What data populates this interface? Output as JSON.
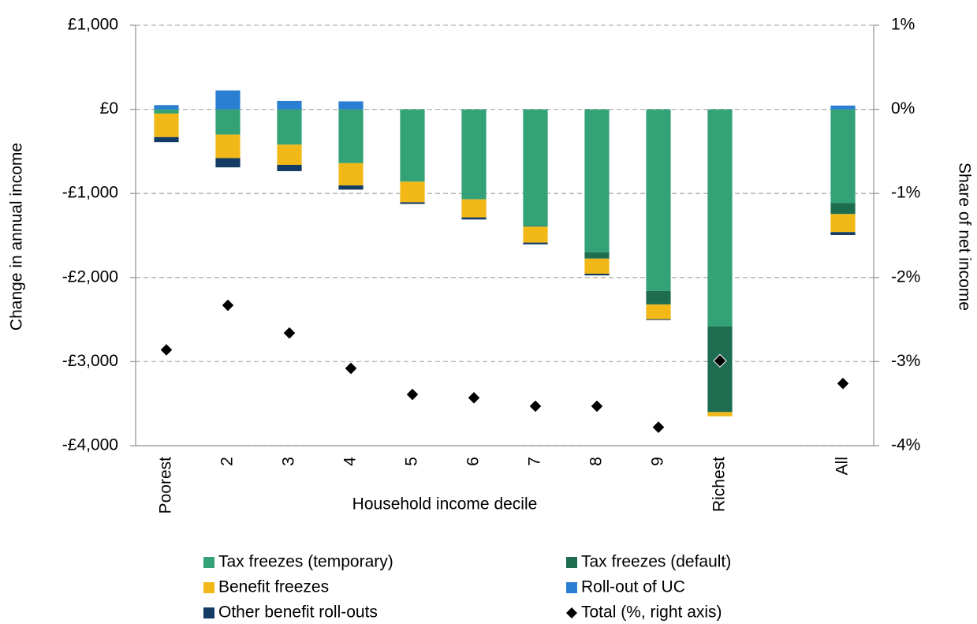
{
  "chart_data": {
    "type": "bar",
    "stacked": true,
    "x_label": "Household income decile",
    "y_label": "Change in annual income",
    "y2_label": "Share of net income",
    "categories": [
      "Poorest",
      "2",
      "3",
      "4",
      "5",
      "6",
      "7",
      "8",
      "9",
      "Richest",
      null,
      "All"
    ],
    "series": [
      {
        "name": "Tax freezes (temporary)",
        "color": "#33a277",
        "values": [
          -50,
          -300,
          -420,
          -640,
          -860,
          -1070,
          -1385,
          -1700,
          -2160,
          -2580,
          null,
          -1115
        ]
      },
      {
        "name": "Tax freezes (default)",
        "color": "#1f6d51",
        "values": [
          0,
          0,
          0,
          0,
          0,
          0,
          -10,
          -75,
          -160,
          -1020,
          null,
          -130
        ]
      },
      {
        "name": "Benefit freezes",
        "color": "#f2b817",
        "values": [
          -280,
          -280,
          -240,
          -265,
          -245,
          -215,
          -190,
          -180,
          -175,
          -50,
          null,
          -215
        ]
      },
      {
        "name": "Roll-out of UC",
        "color": "#2b7fd3",
        "values": [
          50,
          225,
          100,
          95,
          0,
          0,
          0,
          0,
          0,
          0,
          null,
          45
        ]
      },
      {
        "name": "Other benefit roll-outs",
        "color": "#133b64",
        "values": [
          -60,
          -110,
          -75,
          -50,
          -20,
          -25,
          -20,
          -20,
          -10,
          0,
          null,
          -35
        ]
      },
      {
        "name": "Total (%, right axis)",
        "color": "#000000",
        "type": "scatter",
        "axis": "y2",
        "values": [
          -2.86,
          -2.33,
          -2.66,
          -3.08,
          -3.39,
          -3.43,
          -3.53,
          -3.53,
          -3.78,
          -2.99,
          null,
          -3.26
        ]
      }
    ],
    "ylim": [
      -4000,
      1000
    ],
    "yticks": [
      {
        "value": -4000,
        "label": "-£4,000"
      },
      {
        "value": -3000,
        "label": "-£3,000"
      },
      {
        "value": -2000,
        "label": "-£2,000"
      },
      {
        "value": -1000,
        "label": "-£1,000"
      },
      {
        "value": 0,
        "label": "£0"
      },
      {
        "value": 1000,
        "label": "£1,000"
      }
    ],
    "y2lim": [
      -4,
      1
    ],
    "y2ticks": [
      {
        "value": -4,
        "label": "-4%"
      },
      {
        "value": -3,
        "label": "-3%"
      },
      {
        "value": -2,
        "label": "-2%"
      },
      {
        "value": -1,
        "label": "-1%"
      },
      {
        "value": 0,
        "label": "0%"
      },
      {
        "value": 1,
        "label": "1%"
      }
    ],
    "grid": true,
    "legend": "bottom"
  }
}
